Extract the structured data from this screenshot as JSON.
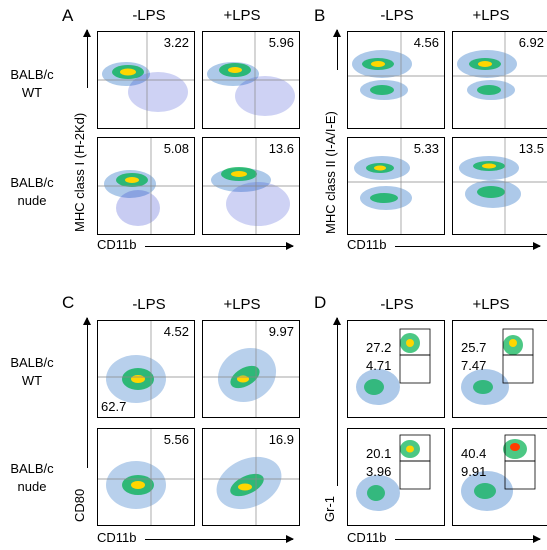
{
  "panels": [
    {
      "letter": "A",
      "cols": [
        "-LPS",
        "+LPS"
      ],
      "rows": [
        "BALB/c\nWT",
        "BALB/c\nnude"
      ],
      "ylabel": "MHC class I (H-2Kd)",
      "xlabel": "CD11b",
      "values": [
        [
          "3.22",
          "5.96"
        ],
        [
          "5.08",
          "13.6"
        ]
      ]
    },
    {
      "letter": "B",
      "cols": [
        "-LPS",
        "+LPS"
      ],
      "rows": [],
      "ylabel": "MHC class II (I-A/I-E)",
      "xlabel": "CD11b",
      "values": [
        [
          "4.56",
          "6.92"
        ],
        [
          "5.33",
          "13.5"
        ]
      ]
    },
    {
      "letter": "C",
      "cols": [
        "-LPS",
        "+LPS"
      ],
      "rows": [
        "BALB/c\nWT",
        "BALB/c\nnude"
      ],
      "ylabel": "CD80",
      "xlabel": "CD11b",
      "values": [
        [
          "4.52",
          "9.97"
        ],
        [
          "5.56",
          "16.9"
        ]
      ],
      "extra": "62.7"
    },
    {
      "letter": "D",
      "cols": [
        "-LPS",
        "+LPS"
      ],
      "rows": [],
      "ylabel": "Gr-1",
      "xlabel": "CD11b",
      "gates": [
        [
          [
            "27.2",
            "4.71"
          ],
          [
            "25.7",
            "7.47"
          ]
        ],
        [
          [
            "20.1",
            "3.96"
          ],
          [
            "40.4",
            "9.91"
          ]
        ]
      ]
    }
  ]
}
